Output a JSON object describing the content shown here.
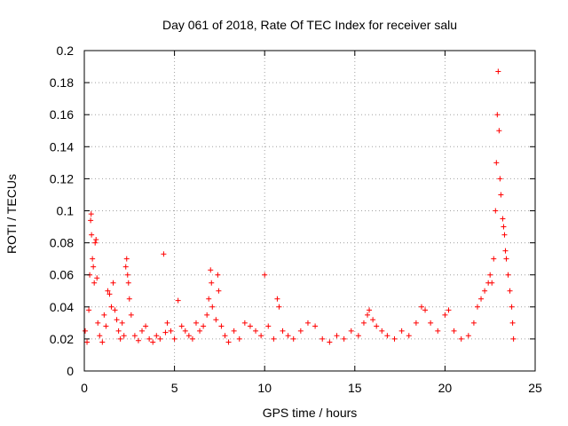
{
  "chart_data": {
    "type": "scatter",
    "title": "Day 061 of 2018, Rate Of TEC Index for receiver salu",
    "xlabel": "GPS time / hours",
    "ylabel": "ROTI / TECUs",
    "xlim": [
      0,
      25
    ],
    "ylim": [
      0,
      0.2
    ],
    "xticks": [
      0,
      5,
      10,
      15,
      20,
      25
    ],
    "xtick_labels": [
      "0",
      "5",
      "10",
      "15",
      "20",
      "25"
    ],
    "yticks": [
      0,
      0.02,
      0.04,
      0.06,
      0.08,
      0.1,
      0.12,
      0.14,
      0.16,
      0.18,
      0.2
    ],
    "ytick_labels": [
      "0",
      "0.02",
      "0.04",
      "0.06",
      "0.08",
      "0.1",
      "0.12",
      "0.14",
      "0.16",
      "0.18",
      "0.2"
    ],
    "grid": true,
    "marker": "plus",
    "color": "#ff0000",
    "series": [
      {
        "name": "ROTI",
        "points": [
          [
            0.05,
            0.025
          ],
          [
            0.15,
            0.018
          ],
          [
            0.25,
            0.038
          ],
          [
            0.3,
            0.06
          ],
          [
            0.35,
            0.094
          ],
          [
            0.38,
            0.098
          ],
          [
            0.4,
            0.085
          ],
          [
            0.45,
            0.07
          ],
          [
            0.5,
            0.065
          ],
          [
            0.55,
            0.055
          ],
          [
            0.6,
            0.08
          ],
          [
            0.65,
            0.082
          ],
          [
            0.7,
            0.058
          ],
          [
            0.75,
            0.03
          ],
          [
            0.85,
            0.022
          ],
          [
            1.0,
            0.018
          ],
          [
            1.1,
            0.035
          ],
          [
            1.2,
            0.028
          ],
          [
            1.3,
            0.05
          ],
          [
            1.4,
            0.048
          ],
          [
            1.5,
            0.04
          ],
          [
            1.6,
            0.055
          ],
          [
            1.7,
            0.038
          ],
          [
            1.8,
            0.032
          ],
          [
            1.9,
            0.025
          ],
          [
            2.0,
            0.02
          ],
          [
            2.1,
            0.03
          ],
          [
            2.2,
            0.022
          ],
          [
            2.3,
            0.065
          ],
          [
            2.35,
            0.07
          ],
          [
            2.4,
            0.06
          ],
          [
            2.45,
            0.055
          ],
          [
            2.5,
            0.045
          ],
          [
            2.6,
            0.035
          ],
          [
            2.8,
            0.022
          ],
          [
            3.0,
            0.019
          ],
          [
            3.2,
            0.025
          ],
          [
            3.4,
            0.028
          ],
          [
            3.6,
            0.02
          ],
          [
            3.8,
            0.018
          ],
          [
            4.0,
            0.022
          ],
          [
            4.2,
            0.02
          ],
          [
            4.4,
            0.073
          ],
          [
            4.5,
            0.024
          ],
          [
            4.6,
            0.03
          ],
          [
            4.8,
            0.025
          ],
          [
            5.0,
            0.02
          ],
          [
            5.2,
            0.044
          ],
          [
            5.4,
            0.028
          ],
          [
            5.6,
            0.025
          ],
          [
            5.8,
            0.022
          ],
          [
            6.0,
            0.02
          ],
          [
            6.2,
            0.03
          ],
          [
            6.4,
            0.025
          ],
          [
            6.6,
            0.028
          ],
          [
            6.8,
            0.035
          ],
          [
            6.9,
            0.045
          ],
          [
            7.0,
            0.063
          ],
          [
            7.05,
            0.055
          ],
          [
            7.1,
            0.04
          ],
          [
            7.3,
            0.032
          ],
          [
            7.4,
            0.06
          ],
          [
            7.45,
            0.05
          ],
          [
            7.6,
            0.028
          ],
          [
            7.8,
            0.022
          ],
          [
            8.0,
            0.018
          ],
          [
            8.3,
            0.025
          ],
          [
            8.6,
            0.02
          ],
          [
            8.9,
            0.03
          ],
          [
            9.2,
            0.028
          ],
          [
            9.5,
            0.025
          ],
          [
            9.8,
            0.022
          ],
          [
            10.0,
            0.06
          ],
          [
            10.2,
            0.028
          ],
          [
            10.5,
            0.02
          ],
          [
            10.7,
            0.045
          ],
          [
            10.8,
            0.04
          ],
          [
            11.0,
            0.025
          ],
          [
            11.3,
            0.022
          ],
          [
            11.6,
            0.02
          ],
          [
            12.0,
            0.025
          ],
          [
            12.4,
            0.03
          ],
          [
            12.8,
            0.028
          ],
          [
            13.2,
            0.02
          ],
          [
            13.6,
            0.018
          ],
          [
            14.0,
            0.022
          ],
          [
            14.4,
            0.02
          ],
          [
            14.8,
            0.025
          ],
          [
            15.2,
            0.022
          ],
          [
            15.5,
            0.03
          ],
          [
            15.7,
            0.035
          ],
          [
            15.8,
            0.038
          ],
          [
            16.0,
            0.032
          ],
          [
            16.2,
            0.028
          ],
          [
            16.5,
            0.025
          ],
          [
            16.8,
            0.022
          ],
          [
            17.2,
            0.02
          ],
          [
            17.6,
            0.025
          ],
          [
            18.0,
            0.022
          ],
          [
            18.4,
            0.03
          ],
          [
            18.7,
            0.04
          ],
          [
            18.9,
            0.038
          ],
          [
            19.2,
            0.03
          ],
          [
            19.6,
            0.025
          ],
          [
            20.0,
            0.035
          ],
          [
            20.2,
            0.038
          ],
          [
            20.5,
            0.025
          ],
          [
            20.9,
            0.02
          ],
          [
            21.3,
            0.022
          ],
          [
            21.6,
            0.03
          ],
          [
            21.8,
            0.04
          ],
          [
            22.0,
            0.045
          ],
          [
            22.2,
            0.05
          ],
          [
            22.4,
            0.055
          ],
          [
            22.5,
            0.06
          ],
          [
            22.6,
            0.055
          ],
          [
            22.7,
            0.07
          ],
          [
            22.8,
            0.1
          ],
          [
            22.85,
            0.13
          ],
          [
            22.9,
            0.16
          ],
          [
            22.95,
            0.187
          ],
          [
            23.0,
            0.15
          ],
          [
            23.05,
            0.12
          ],
          [
            23.1,
            0.11
          ],
          [
            23.2,
            0.095
          ],
          [
            23.25,
            0.09
          ],
          [
            23.3,
            0.085
          ],
          [
            23.35,
            0.075
          ],
          [
            23.4,
            0.07
          ],
          [
            23.5,
            0.06
          ],
          [
            23.6,
            0.05
          ],
          [
            23.7,
            0.04
          ],
          [
            23.75,
            0.03
          ],
          [
            23.8,
            0.02
          ]
        ]
      }
    ]
  }
}
